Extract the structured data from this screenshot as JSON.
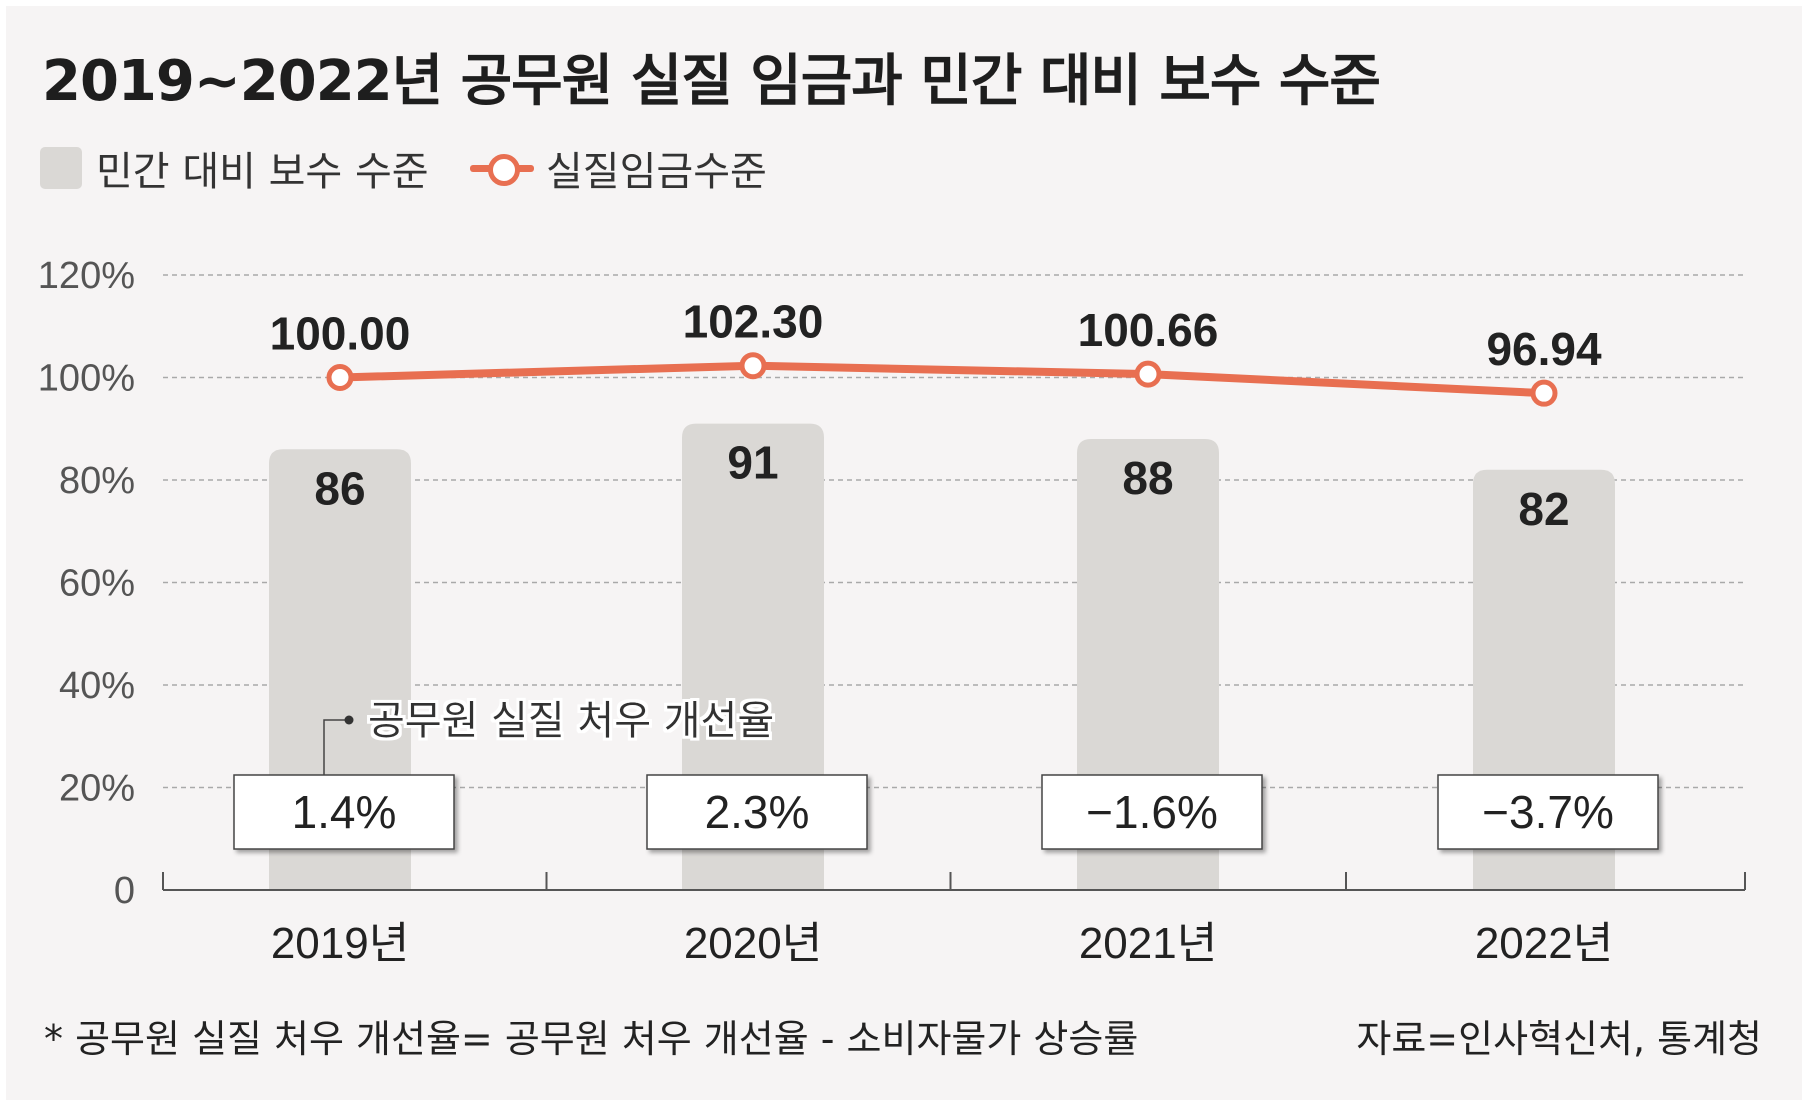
{
  "title": "2019~2022년 공무원 실질 임금과 민간 대비 보수 수준",
  "legend": {
    "bar_label": "민간 대비 보수 수준",
    "line_label": "실질임금수준"
  },
  "annotation": "공무원 실질 처우 개선율",
  "footnote": "* 공무원 실질 처우 개선율= 공무원 처우 개선율 - 소비자물가 상승률",
  "source": "자료=인사혁신처, 통계청",
  "colors": {
    "bar": "#dad8d5",
    "line": "#e86f51",
    "text": "#222222",
    "grid": "#a9a9a9"
  },
  "chart_data": {
    "type": "bar",
    "categories": [
      "2019년",
      "2020년",
      "2021년",
      "2022년"
    ],
    "ylim": [
      0,
      120
    ],
    "y_ticks": [
      "0",
      "20%",
      "40%",
      "60%",
      "80%",
      "100%",
      "120%"
    ],
    "grid": true,
    "series": [
      {
        "name": "민간 대비 보수 수준",
        "type": "bar",
        "values": [
          86,
          91,
          88,
          82
        ],
        "labels": [
          "86",
          "91",
          "88",
          "82"
        ]
      },
      {
        "name": "실질임금수준",
        "type": "line",
        "values": [
          100.0,
          102.3,
          100.66,
          96.94
        ],
        "labels": [
          "100.00",
          "102.30",
          "100.66",
          "96.94"
        ]
      }
    ],
    "improvement_rate": {
      "label": "공무원 실질 처우 개선율",
      "values": [
        1.4,
        2.3,
        -1.6,
        -3.7
      ],
      "labels": [
        "1.4%",
        "2.3%",
        "−1.6%",
        "−3.7%"
      ]
    }
  }
}
